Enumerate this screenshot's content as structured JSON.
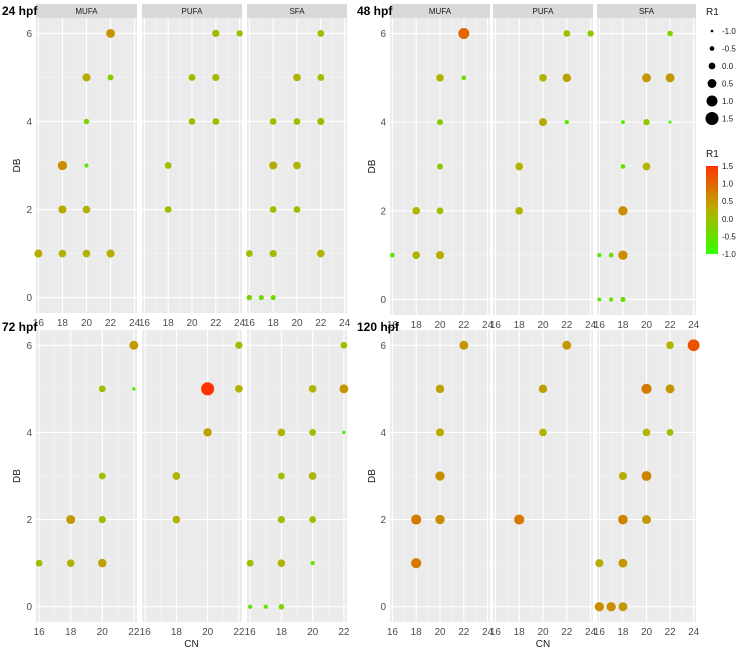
{
  "chart_data": {
    "type": "scatter",
    "facet_labels": [
      "MUFA",
      "PUFA",
      "SFA"
    ],
    "colors": {
      "low": "#33ff00",
      "mid": "#b5b000",
      "high": "#ff3300"
    },
    "legend_size": {
      "title": "R1",
      "labels": [
        "-1.0",
        "-0.5",
        "0.0",
        "0.5",
        "1.0",
        "1.5"
      ],
      "values": [
        -1.0,
        -0.5,
        0.0,
        0.5,
        1.0,
        1.5
      ]
    },
    "legend_color": {
      "title": "R1",
      "labels": [
        "1.5",
        "1.0",
        "0.5",
        "0.0",
        "-0.5",
        "-1.0"
      ],
      "values": [
        1.5,
        1.0,
        0.5,
        0.0,
        -0.5,
        -1.0
      ]
    },
    "groups": [
      {
        "title": "24 hpf",
        "ylabel": "DB",
        "xlabel": "",
        "xlim": [
          15.8,
          24.2
        ],
        "ylim": [
          -0.35,
          6.35
        ],
        "xticks": [
          16,
          18,
          20,
          22,
          24
        ],
        "yticks": [
          0,
          2,
          4,
          6
        ],
        "facets": [
          {
            "label": "MUFA",
            "points": [
              [
                16,
                1,
                0.3
              ],
              [
                18,
                1,
                0.2
              ],
              [
                18,
                2,
                0.3
              ],
              [
                18,
                3,
                0.6
              ],
              [
                20,
                1,
                0.2
              ],
              [
                20,
                2,
                0.2
              ],
              [
                20,
                3,
                -0.6
              ],
              [
                20,
                4,
                -0.3
              ],
              [
                20,
                5,
                0.3
              ],
              [
                22,
                1,
                0.3
              ],
              [
                22,
                5,
                -0.2
              ],
              [
                22,
                6,
                0.5
              ]
            ]
          },
          {
            "label": "PUFA",
            "points": [
              [
                18,
                2,
                0.0
              ],
              [
                18,
                3,
                0.0
              ],
              [
                20,
                4,
                0.0
              ],
              [
                20,
                5,
                0.0
              ],
              [
                22,
                4,
                0.0
              ],
              [
                22,
                5,
                0.1
              ],
              [
                22,
                6,
                0.1
              ],
              [
                24,
                6,
                -0.1
              ]
            ]
          },
          {
            "label": "SFA",
            "points": [
              [
                16,
                0,
                -0.3
              ],
              [
                16,
                1,
                0.0
              ],
              [
                17,
                0,
                -0.4
              ],
              [
                18,
                0,
                -0.4
              ],
              [
                18,
                1,
                0.1
              ],
              [
                18,
                2,
                0.0
              ],
              [
                18,
                3,
                0.3
              ],
              [
                18,
                4,
                0.0
              ],
              [
                20,
                2,
                0.0
              ],
              [
                20,
                3,
                0.2
              ],
              [
                20,
                4,
                0.0
              ],
              [
                20,
                5,
                0.2
              ],
              [
                22,
                1,
                0.2
              ],
              [
                22,
                4,
                0.1
              ],
              [
                22,
                5,
                0.0
              ],
              [
                22,
                6,
                0.0
              ]
            ]
          }
        ]
      },
      {
        "title": "48 hpf",
        "ylabel": "DB",
        "xlabel": "",
        "xlim": [
          15.8,
          24.2
        ],
        "ylim": [
          -0.35,
          6.35
        ],
        "xticks": [
          16,
          18,
          20,
          22,
          24
        ],
        "yticks": [
          0,
          2,
          4,
          6
        ],
        "facets": [
          {
            "label": "MUFA",
            "points": [
              [
                16,
                1,
                -0.5
              ],
              [
                18,
                1,
                0.2
              ],
              [
                18,
                2,
                0.2
              ],
              [
                20,
                1,
                0.3
              ],
              [
                20,
                2,
                0.0
              ],
              [
                20,
                3,
                -0.2
              ],
              [
                20,
                4,
                -0.2
              ],
              [
                20,
                5,
                0.2
              ],
              [
                22,
                5,
                -0.5
              ],
              [
                22,
                6,
                1.0
              ]
            ]
          },
          {
            "label": "PUFA",
            "points": [
              [
                18,
                2,
                0.2
              ],
              [
                18,
                3,
                0.2
              ],
              [
                20,
                4,
                0.3
              ],
              [
                20,
                5,
                0.2
              ],
              [
                22,
                4,
                -0.6
              ],
              [
                22,
                5,
                0.4
              ],
              [
                22,
                6,
                0.0
              ],
              [
                24,
                6,
                -0.1
              ]
            ]
          },
          {
            "label": "SFA",
            "points": [
              [
                16,
                0,
                -0.7
              ],
              [
                16,
                1,
                -0.6
              ],
              [
                17,
                0,
                -0.6
              ],
              [
                17,
                1,
                -0.5
              ],
              [
                18,
                0,
                -0.4
              ],
              [
                18,
                1,
                0.6
              ],
              [
                18,
                2,
                0.6
              ],
              [
                18,
                3,
                -0.5
              ],
              [
                18,
                4,
                -0.7
              ],
              [
                20,
                3,
                0.2
              ],
              [
                20,
                4,
                -0.1
              ],
              [
                20,
                5,
                0.5
              ],
              [
                22,
                4,
                -0.9
              ],
              [
                22,
                5,
                0.5
              ],
              [
                22,
                6,
                -0.3
              ]
            ]
          }
        ]
      },
      {
        "title": "72 hpf",
        "ylabel": "DB",
        "xlabel": "CN",
        "xlim": [
          15.8,
          22.2
        ],
        "ylim": [
          -0.35,
          6.35
        ],
        "xticks": [
          16,
          18,
          20,
          22
        ],
        "yticks": [
          0,
          2,
          4,
          6
        ],
        "facets": [
          {
            "label": "MUFA",
            "points": [
              [
                16,
                1,
                0.0
              ],
              [
                18,
                1,
                0.2
              ],
              [
                18,
                2,
                0.5
              ],
              [
                20,
                1,
                0.4
              ],
              [
                20,
                2,
                0.1
              ],
              [
                20,
                3,
                0.0
              ],
              [
                20,
                5,
                0.0
              ],
              [
                22,
                5,
                -0.8
              ],
              [
                22,
                6,
                0.5
              ]
            ]
          },
          {
            "label": "PUFA",
            "points": [
              [
                18,
                2,
                0.2
              ],
              [
                18,
                3,
                0.2
              ],
              [
                20,
                4,
                0.4
              ],
              [
                20,
                5,
                1.5
              ],
              [
                22,
                5,
                0.2
              ],
              [
                22,
                6,
                0.1
              ]
            ]
          },
          {
            "label": "SFA",
            "points": [
              [
                16,
                0,
                -0.6
              ],
              [
                16,
                1,
                0.0
              ],
              [
                17,
                0,
                -0.6
              ],
              [
                18,
                0,
                -0.3
              ],
              [
                18,
                1,
                0.2
              ],
              [
                18,
                2,
                0.1
              ],
              [
                18,
                3,
                0.0
              ],
              [
                18,
                4,
                0.2
              ],
              [
                20,
                1,
                -0.6
              ],
              [
                20,
                2,
                0.0
              ],
              [
                20,
                3,
                0.2
              ],
              [
                20,
                4,
                0.0
              ],
              [
                20,
                5,
                0.2
              ],
              [
                22,
                4,
                -0.8
              ],
              [
                22,
                5,
                0.5
              ],
              [
                22,
                6,
                0.0
              ]
            ]
          }
        ]
      },
      {
        "title": "120 hpf",
        "ylabel": "DB",
        "xlabel": "CN",
        "xlim": [
          15.8,
          24.2
        ],
        "ylim": [
          -0.35,
          6.35
        ],
        "xticks": [
          16,
          18,
          20,
          22,
          24
        ],
        "yticks": [
          0,
          2,
          4,
          6
        ],
        "facets": [
          {
            "label": "MUFA",
            "points": [
              [
                18,
                1,
                0.8
              ],
              [
                18,
                2,
                0.8
              ],
              [
                20,
                2,
                0.6
              ],
              [
                20,
                3,
                0.6
              ],
              [
                20,
                4,
                0.3
              ],
              [
                20,
                5,
                0.4
              ],
              [
                22,
                6,
                0.5
              ]
            ]
          },
          {
            "label": "PUFA",
            "points": [
              [
                18,
                2,
                0.8
              ],
              [
                20,
                4,
                0.2
              ],
              [
                20,
                5,
                0.4
              ],
              [
                22,
                6,
                0.5
              ]
            ]
          },
          {
            "label": "SFA",
            "points": [
              [
                16,
                0,
                0.6
              ],
              [
                16,
                1,
                0.3
              ],
              [
                17,
                0,
                0.6
              ],
              [
                18,
                0,
                0.5
              ],
              [
                18,
                1,
                0.5
              ],
              [
                18,
                2,
                0.7
              ],
              [
                18,
                3,
                0.3
              ],
              [
                20,
                2,
                0.5
              ],
              [
                20,
                3,
                0.7
              ],
              [
                20,
                4,
                0.2
              ],
              [
                20,
                5,
                0.8
              ],
              [
                22,
                4,
                0.0
              ],
              [
                22,
                5,
                0.5
              ],
              [
                22,
                6,
                0.2
              ],
              [
                24,
                6,
                1.2
              ]
            ]
          }
        ]
      }
    ]
  }
}
